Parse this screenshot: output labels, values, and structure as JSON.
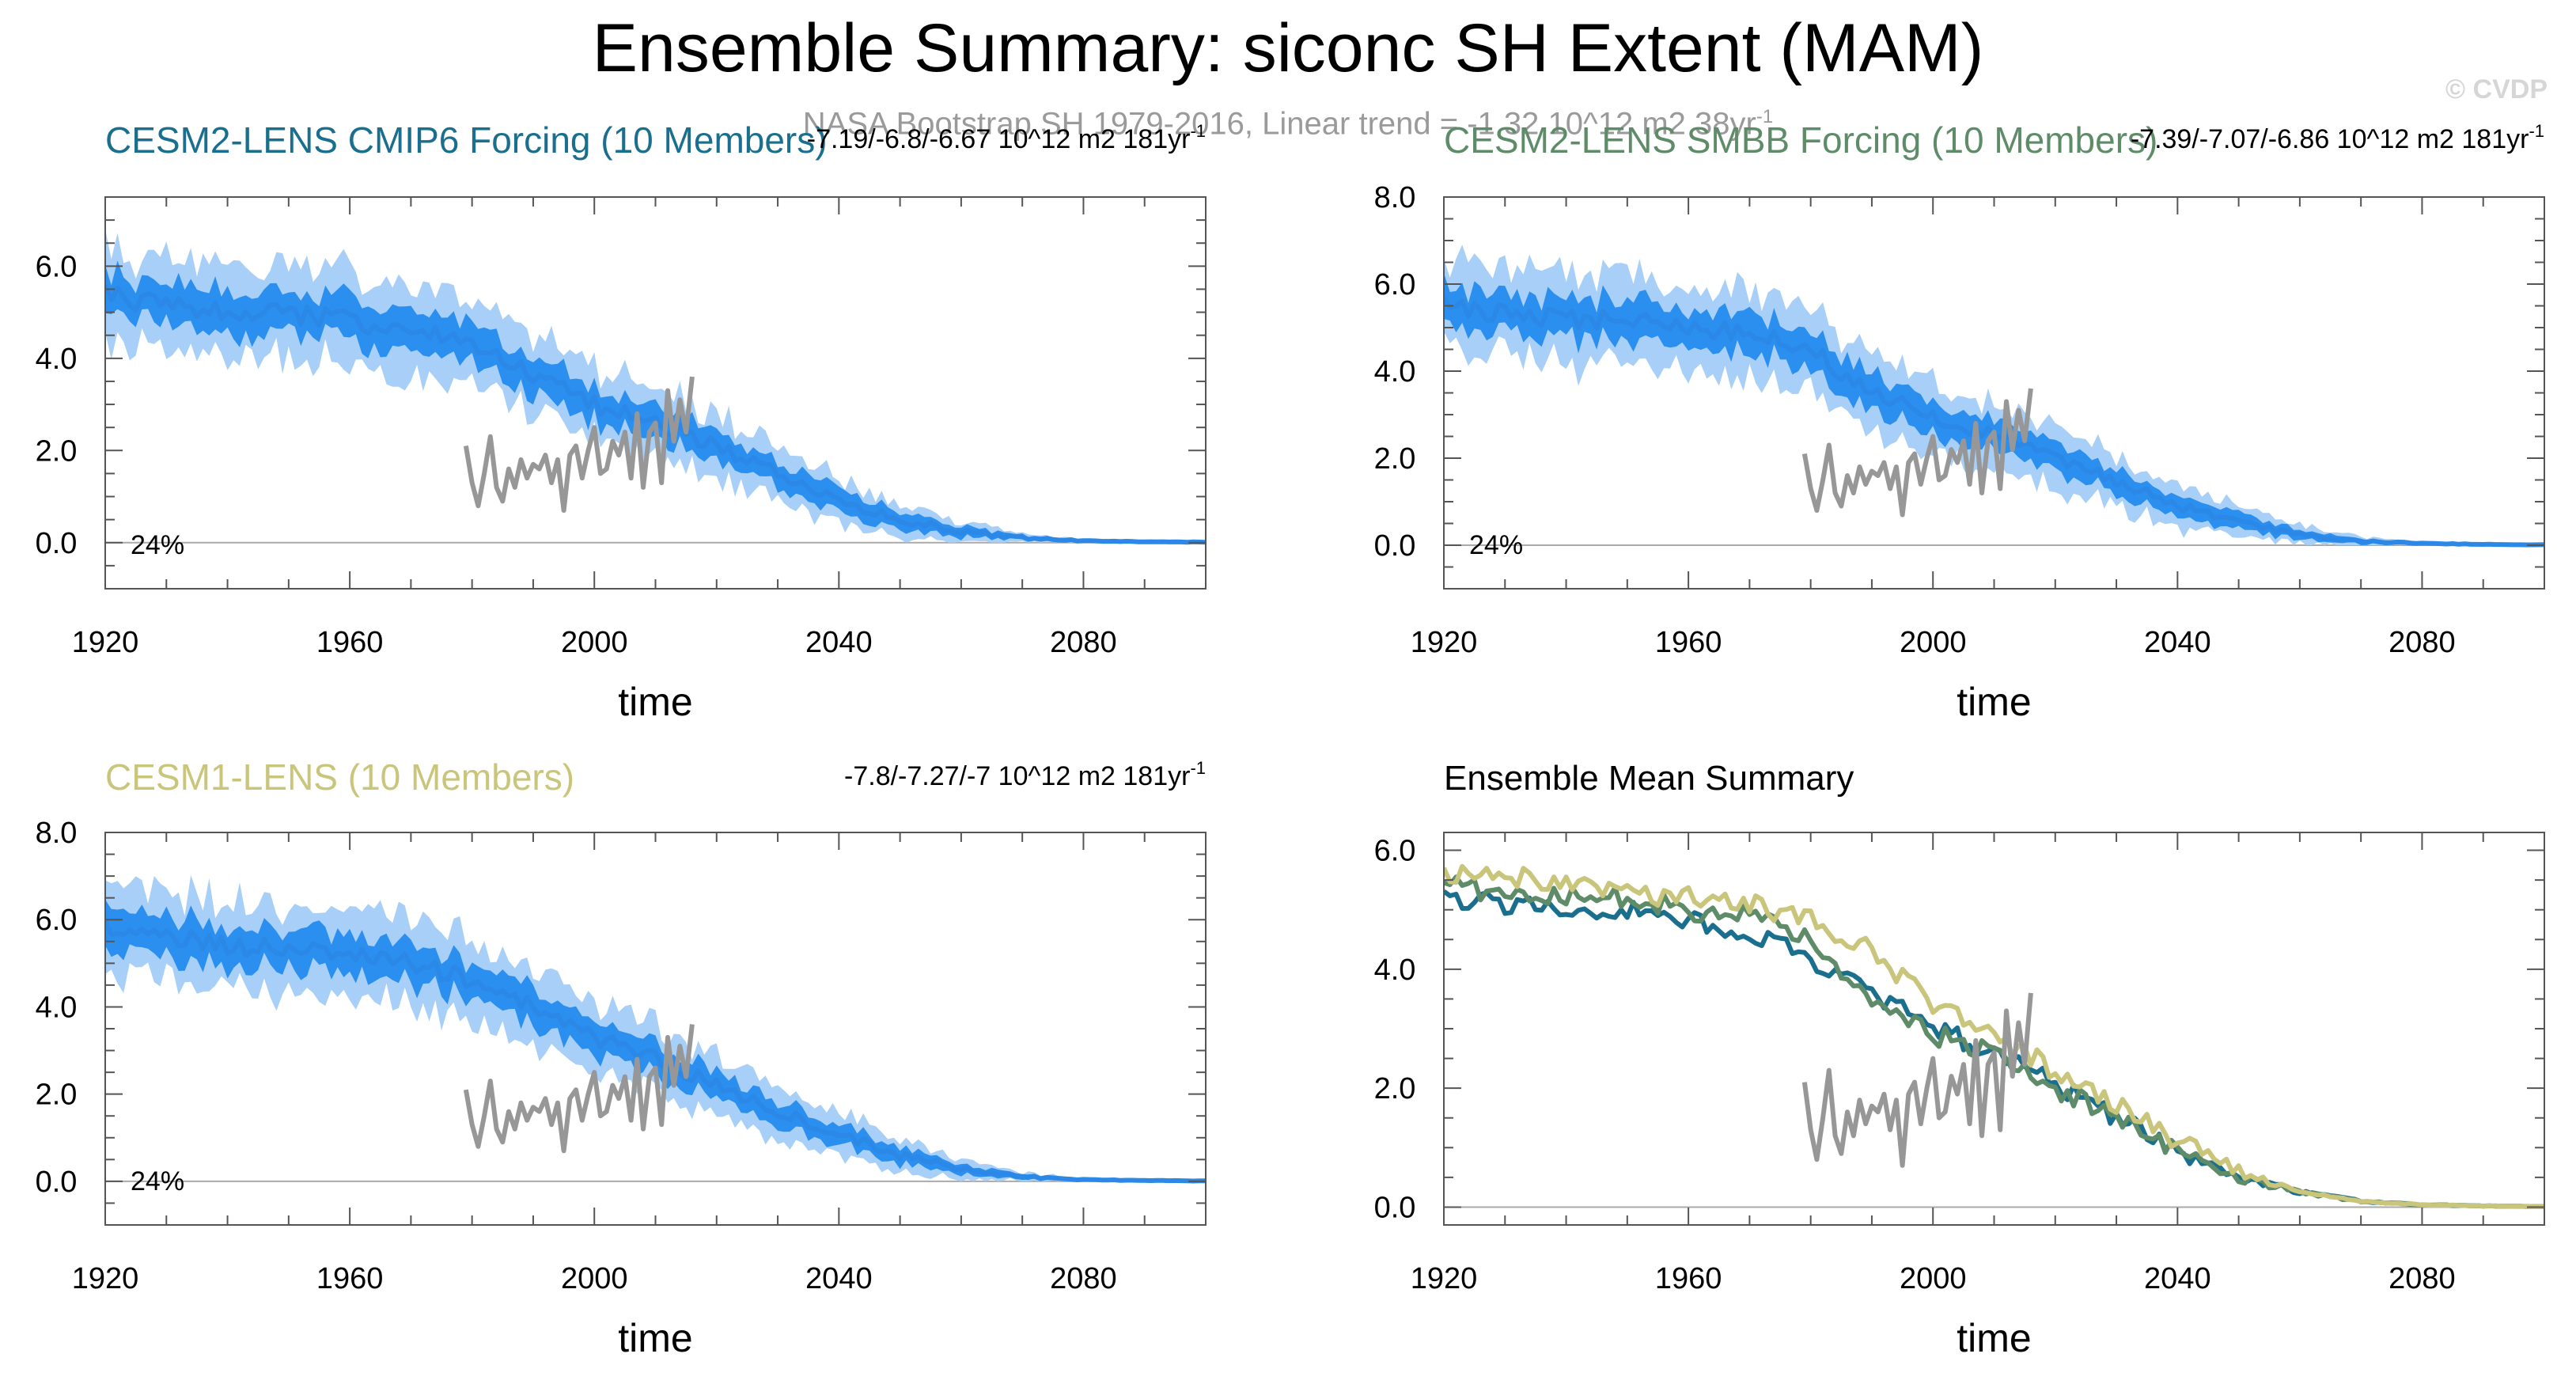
{
  "figure": {
    "title": "Ensemble Summary: siconc SH Extent (MAM)",
    "obs_subtitle": "NASA Bootstrap SH 1979-2016, Linear trend = -1.32 10^12 m2 38yr",
    "obs_subtitle_sup": "-1",
    "credit": "© CVDP"
  },
  "colors": {
    "cesm2_cmip6": "#1a6e8e",
    "cesm2_smbb": "#5e8c68",
    "cesm1": "#c9c57a",
    "ensemble_mean": "#2b88e6",
    "spread_inner": "#2b8ff0",
    "spread_outer": "#a7cff8",
    "obs": "#979797",
    "zero_line": "#aaaaaa"
  },
  "chart_data": [
    {
      "type": "line",
      "id": "cesm2_cmip6",
      "title": "CESM2-LENS CMIP6 Forcing (10 Members)",
      "title_color_key": "cesm2_cmip6",
      "trend_text": "-7.19/-6.8/-6.67 10^12 m2 181yr",
      "trend_sup": "-1",
      "percent_label": "24%",
      "xlabel": "time",
      "xlim": [
        1920,
        2100
      ],
      "xticks": [
        1920,
        1960,
        2000,
        2040,
        2080
      ],
      "ylim": [
        -1.0,
        7.5
      ],
      "yticks": [
        "0.0",
        "2.0",
        "4.0",
        "6.0"
      ],
      "series": [
        {
          "name": "ensemble mean",
          "kind": "mean_with_spread",
          "x": [
            1920,
            1930,
            1940,
            1950,
            1960,
            1970,
            1980,
            1990,
            2000,
            2010,
            2020,
            2030,
            2040,
            2050,
            2060,
            2070,
            2080,
            2090,
            2100
          ],
          "mean": [
            5.4,
            5.1,
            5.0,
            5.0,
            4.8,
            4.6,
            4.3,
            3.6,
            3.0,
            2.6,
            2.1,
            1.5,
            0.9,
            0.5,
            0.25,
            0.1,
            0.04,
            0.02,
            0.01
          ],
          "spread_inner": [
            0.45,
            0.45,
            0.45,
            0.45,
            0.45,
            0.45,
            0.42,
            0.4,
            0.38,
            0.35,
            0.32,
            0.28,
            0.24,
            0.18,
            0.12,
            0.06,
            0.02,
            0.01,
            0.01
          ],
          "spread_outer": [
            1.0,
            1.0,
            1.0,
            1.0,
            1.0,
            1.0,
            0.9,
            0.85,
            0.8,
            0.75,
            0.7,
            0.6,
            0.5,
            0.38,
            0.22,
            0.1,
            0.04,
            0.02,
            0.01
          ]
        },
        {
          "name": "NASA Bootstrap",
          "x": [
            1979,
            1980,
            1981,
            1982,
            1983,
            1984,
            1985,
            1986,
            1987,
            1988,
            1989,
            1990,
            1991,
            1992,
            1993,
            1994,
            1995,
            1996,
            1997,
            1998,
            1999,
            2000,
            2001,
            2002,
            2003,
            2004,
            2005,
            2006,
            2007,
            2008,
            2009,
            2010,
            2011,
            2012,
            2013,
            2014,
            2015,
            2016
          ],
          "values": [
            2.1,
            1.3,
            0.8,
            1.5,
            2.3,
            1.2,
            0.9,
            1.6,
            1.2,
            1.8,
            1.4,
            1.7,
            1.6,
            1.9,
            1.3,
            1.8,
            0.7,
            1.9,
            2.1,
            1.4,
            2.0,
            2.5,
            1.5,
            1.6,
            2.2,
            1.9,
            2.4,
            1.4,
            2.8,
            1.2,
            2.4,
            2.6,
            1.3,
            3.3,
            2.2,
            3.1,
            2.4,
            3.6
          ]
        }
      ]
    },
    {
      "type": "line",
      "id": "cesm2_smbb",
      "title": "CESM2-LENS SMBB Forcing (10 Members)",
      "title_color_key": "cesm2_smbb",
      "trend_text": "-7.39/-7.07/-6.86 10^12 m2 181yr",
      "trend_sup": "-1",
      "percent_label": "24%",
      "xlabel": "time",
      "xlim": [
        1920,
        2100
      ],
      "xticks": [
        1920,
        1960,
        2000,
        2040,
        2080
      ],
      "ylim": [
        -1.0,
        8.0
      ],
      "yticks": [
        "0.0",
        "2.0",
        "4.0",
        "6.0",
        "8.0"
      ],
      "series": [
        {
          "name": "ensemble mean",
          "kind": "mean_with_spread",
          "x": [
            1920,
            1930,
            1940,
            1950,
            1960,
            1970,
            1980,
            1990,
            2000,
            2010,
            2020,
            2030,
            2040,
            2050,
            2060,
            2070,
            2080,
            2090,
            2100
          ],
          "mean": [
            5.5,
            5.3,
            5.2,
            5.2,
            5.0,
            4.9,
            4.5,
            3.5,
            2.9,
            2.5,
            2.0,
            1.5,
            0.9,
            0.5,
            0.25,
            0.1,
            0.04,
            0.02,
            0.01
          ],
          "spread_inner": [
            0.45,
            0.45,
            0.45,
            0.45,
            0.45,
            0.45,
            0.42,
            0.4,
            0.38,
            0.35,
            0.32,
            0.28,
            0.24,
            0.18,
            0.12,
            0.06,
            0.02,
            0.01,
            0.01
          ],
          "spread_outer": [
            1.0,
            1.0,
            1.0,
            1.0,
            1.0,
            1.0,
            0.9,
            0.85,
            0.8,
            0.75,
            0.7,
            0.6,
            0.5,
            0.38,
            0.22,
            0.1,
            0.04,
            0.02,
            0.01
          ]
        },
        {
          "name": "NASA Bootstrap",
          "x": [
            1979,
            1980,
            1981,
            1982,
            1983,
            1984,
            1985,
            1986,
            1987,
            1988,
            1989,
            1990,
            1991,
            1992,
            1993,
            1994,
            1995,
            1996,
            1997,
            1998,
            1999,
            2000,
            2001,
            2002,
            2003,
            2004,
            2005,
            2006,
            2007,
            2008,
            2009,
            2010,
            2011,
            2012,
            2013,
            2014,
            2015,
            2016
          ],
          "values": [
            2.1,
            1.3,
            0.8,
            1.5,
            2.3,
            1.2,
            0.9,
            1.6,
            1.2,
            1.8,
            1.4,
            1.7,
            1.6,
            1.9,
            1.3,
            1.8,
            0.7,
            1.9,
            2.1,
            1.4,
            2.0,
            2.5,
            1.5,
            1.6,
            2.2,
            1.9,
            2.4,
            1.4,
            2.8,
            1.2,
            2.4,
            2.6,
            1.3,
            3.3,
            2.2,
            3.1,
            2.4,
            3.6
          ]
        }
      ]
    },
    {
      "type": "line",
      "id": "cesm1",
      "title": "CESM1-LENS (10 Members)",
      "title_color_key": "cesm1",
      "trend_text": "-7.8/-7.27/-7 10^12 m2 181yr",
      "trend_sup": "-1",
      "percent_label": "24%",
      "xlabel": "time",
      "xlim": [
        1920,
        2100
      ],
      "xticks": [
        1920,
        1960,
        2000,
        2040,
        2080
      ],
      "ylim": [
        -1.0,
        8.0
      ],
      "yticks": [
        "0.0",
        "2.0",
        "4.0",
        "6.0",
        "8.0"
      ],
      "series": [
        {
          "name": "ensemble mean",
          "kind": "mean_with_spread",
          "x": [
            1920,
            1930,
            1940,
            1950,
            1960,
            1970,
            1980,
            1990,
            2000,
            2010,
            2020,
            2030,
            2040,
            2050,
            2060,
            2070,
            2080,
            2090,
            2100
          ],
          "mean": [
            5.8,
            5.6,
            5.4,
            5.3,
            5.2,
            5.0,
            4.6,
            4.0,
            3.3,
            2.8,
            2.2,
            1.6,
            1.1,
            0.6,
            0.3,
            0.1,
            0.04,
            0.02,
            0.01
          ],
          "spread_inner": [
            0.45,
            0.45,
            0.45,
            0.45,
            0.45,
            0.45,
            0.42,
            0.4,
            0.38,
            0.35,
            0.32,
            0.28,
            0.24,
            0.18,
            0.12,
            0.06,
            0.02,
            0.01,
            0.01
          ],
          "spread_outer": [
            1.0,
            1.0,
            1.0,
            1.0,
            1.0,
            1.0,
            0.9,
            0.85,
            0.8,
            0.75,
            0.7,
            0.6,
            0.5,
            0.38,
            0.22,
            0.1,
            0.04,
            0.02,
            0.01
          ]
        },
        {
          "name": "NASA Bootstrap",
          "x": [
            1979,
            1980,
            1981,
            1982,
            1983,
            1984,
            1985,
            1986,
            1987,
            1988,
            1989,
            1990,
            1991,
            1992,
            1993,
            1994,
            1995,
            1996,
            1997,
            1998,
            1999,
            2000,
            2001,
            2002,
            2003,
            2004,
            2005,
            2006,
            2007,
            2008,
            2009,
            2010,
            2011,
            2012,
            2013,
            2014,
            2015,
            2016
          ],
          "values": [
            2.1,
            1.3,
            0.8,
            1.5,
            2.3,
            1.2,
            0.9,
            1.6,
            1.2,
            1.8,
            1.4,
            1.7,
            1.6,
            1.9,
            1.3,
            1.8,
            0.7,
            1.9,
            2.1,
            1.4,
            2.0,
            2.5,
            1.5,
            1.6,
            2.2,
            1.9,
            2.4,
            1.4,
            2.8,
            1.2,
            2.4,
            2.6,
            1.3,
            3.3,
            2.2,
            3.1,
            2.4,
            3.6
          ]
        }
      ]
    },
    {
      "type": "line",
      "id": "ensemble_summary",
      "title": "Ensemble Mean Summary",
      "title_color_key": "",
      "trend_text": "",
      "trend_sup": "",
      "percent_label": "",
      "xlabel": "time",
      "xlim": [
        1920,
        2100
      ],
      "xticks": [
        1920,
        1960,
        2000,
        2040,
        2080
      ],
      "ylim": [
        -0.3,
        6.3
      ],
      "yticks": [
        "0.0",
        "2.0",
        "4.0",
        "6.0"
      ],
      "series": [
        {
          "name": "CESM2-LENS CMIP6 Forcing",
          "color_key": "cesm2_cmip6",
          "x": [
            1920,
            1930,
            1940,
            1950,
            1960,
            1970,
            1980,
            1990,
            2000,
            2010,
            2020,
            2030,
            2040,
            2050,
            2060,
            2070,
            2080,
            2090,
            2100
          ],
          "values": [
            5.2,
            5.1,
            5.0,
            5.0,
            4.8,
            4.6,
            4.2,
            3.6,
            3.0,
            2.6,
            2.1,
            1.5,
            0.9,
            0.5,
            0.25,
            0.1,
            0.04,
            0.02,
            0.01
          ]
        },
        {
          "name": "CESM2-LENS SMBB Forcing",
          "color_key": "cesm2_smbb",
          "x": [
            1920,
            1930,
            1940,
            1950,
            1960,
            1970,
            1980,
            1990,
            2000,
            2010,
            2020,
            2030,
            2040,
            2050,
            2060,
            2070,
            2080,
            2090,
            2100
          ],
          "values": [
            5.4,
            5.3,
            5.2,
            5.2,
            5.0,
            4.9,
            4.5,
            3.5,
            2.9,
            2.6,
            2.0,
            1.5,
            0.9,
            0.5,
            0.25,
            0.1,
            0.04,
            0.02,
            0.01
          ]
        },
        {
          "name": "CESM1-LENS",
          "color_key": "cesm1",
          "x": [
            1920,
            1930,
            1940,
            1950,
            1960,
            1970,
            1980,
            1990,
            2000,
            2010,
            2020,
            2030,
            2040,
            2050,
            2060,
            2070,
            2080,
            2090,
            2100
          ],
          "values": [
            5.6,
            5.6,
            5.4,
            5.3,
            5.2,
            5.1,
            4.8,
            4.3,
            3.4,
            2.9,
            2.3,
            1.7,
            1.1,
            0.6,
            0.3,
            0.1,
            0.04,
            0.02,
            0.01
          ]
        },
        {
          "name": "NASA Bootstrap",
          "color_key": "obs",
          "x": [
            1979,
            1980,
            1981,
            1982,
            1983,
            1984,
            1985,
            1986,
            1987,
            1988,
            1989,
            1990,
            1991,
            1992,
            1993,
            1994,
            1995,
            1996,
            1997,
            1998,
            1999,
            2000,
            2001,
            2002,
            2003,
            2004,
            2005,
            2006,
            2007,
            2008,
            2009,
            2010,
            2011,
            2012,
            2013,
            2014,
            2015,
            2016
          ],
          "values": [
            2.1,
            1.3,
            0.8,
            1.5,
            2.3,
            1.2,
            0.9,
            1.6,
            1.2,
            1.8,
            1.4,
            1.7,
            1.6,
            1.9,
            1.3,
            1.8,
            0.7,
            1.9,
            2.1,
            1.4,
            2.0,
            2.5,
            1.5,
            1.6,
            2.2,
            1.9,
            2.4,
            1.4,
            2.8,
            1.2,
            2.4,
            2.6,
            1.3,
            3.3,
            2.2,
            3.1,
            2.4,
            3.6
          ]
        }
      ]
    }
  ]
}
